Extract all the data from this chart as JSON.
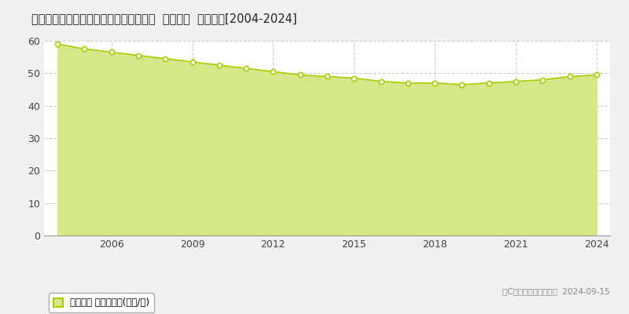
{
  "title": "鹿児島県鹿児島市和田１丁目２３番２外  地価公示  地価推移[2004-2024]",
  "years": [
    2004,
    2005,
    2006,
    2007,
    2008,
    2009,
    2010,
    2011,
    2012,
    2013,
    2014,
    2015,
    2016,
    2017,
    2018,
    2019,
    2020,
    2021,
    2022,
    2023,
    2024
  ],
  "values": [
    59.0,
    57.5,
    56.5,
    55.5,
    54.5,
    53.5,
    52.5,
    51.5,
    50.5,
    49.5,
    49.0,
    48.5,
    47.5,
    47.0,
    47.0,
    46.5,
    47.0,
    47.5,
    48.0,
    49.0,
    49.5
  ],
  "line_color": "#aacc00",
  "fill_color": "#d4e88a",
  "fill_alpha": 1.0,
  "marker_color": "#ffffff",
  "marker_edge_color": "#aacc00",
  "background_color": "#f0f0f0",
  "plot_bg_color": "#ffffff",
  "grid_color_h": "#cccccc",
  "grid_color_v": "#cccccc",
  "ylim": [
    0,
    60
  ],
  "yticks": [
    0,
    10,
    20,
    30,
    40,
    50,
    60
  ],
  "xtick_years": [
    2006,
    2009,
    2012,
    2015,
    2018,
    2021,
    2024
  ],
  "legend_label": "地価公示 平均坊単価(万円/坊)",
  "copyright_text": "（C）土地価格ットコム  2024-09-15"
}
